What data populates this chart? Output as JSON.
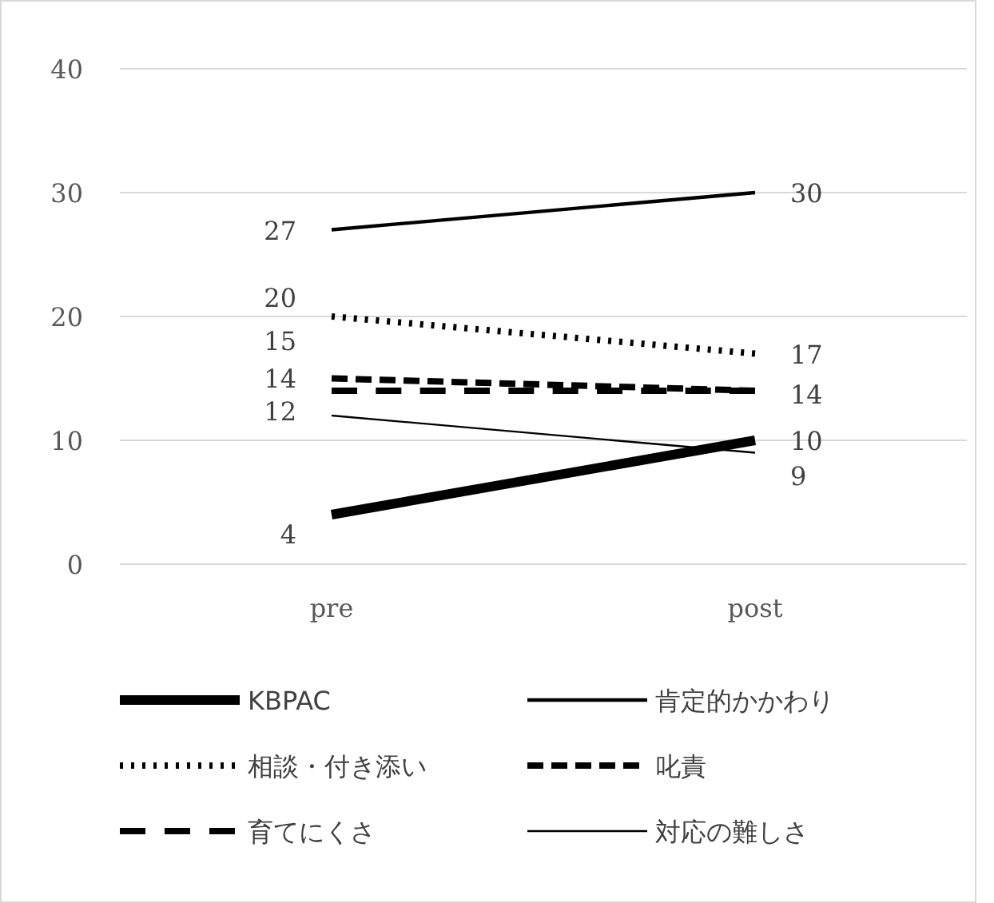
{
  "chart_data": {
    "type": "line",
    "categories": [
      "pre",
      "post"
    ],
    "ylim": [
      0,
      40
    ],
    "yticks": [
      0,
      10,
      20,
      30,
      40
    ],
    "grid": "y",
    "legend": "bottom",
    "marker": "none",
    "series": [
      {
        "name": "KBPAC",
        "color": "#000000",
        "line_style": "solid",
        "values": [
          4,
          10
        ],
        "value_labels": [
          "4",
          "10"
        ]
      },
      {
        "name": "肯定的かかわり",
        "color": "#000000",
        "line_style": "solid",
        "values": [
          27,
          30
        ],
        "value_labels": [
          "27",
          "30"
        ]
      },
      {
        "name": "相談・付き添い",
        "color": "#000000",
        "line_style": "dotted",
        "values": [
          20,
          17
        ],
        "value_labels": [
          "20",
          "17"
        ]
      },
      {
        "name": "叱責",
        "color": "#000000",
        "line_style": "dashed",
        "values": [
          15,
          14
        ],
        "value_labels": [
          "15",
          "14"
        ]
      },
      {
        "name": "育てにくさ",
        "color": "#000000",
        "line_style": "dashed",
        "values": [
          14,
          14
        ],
        "value_labels": [
          "14",
          null
        ]
      },
      {
        "name": "対応の難しさ",
        "color": "#000000",
        "line_style": "solid",
        "values": [
          12,
          9
        ],
        "value_labels": [
          "12",
          "9"
        ]
      }
    ]
  }
}
